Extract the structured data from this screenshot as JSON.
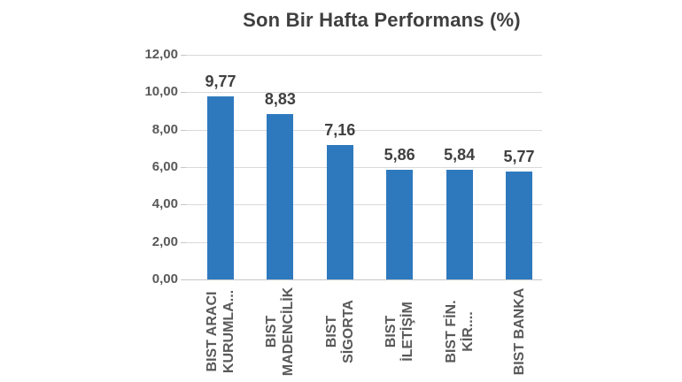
{
  "chart_data": {
    "type": "bar",
    "title": "Son Bir Hafta Performans (%)",
    "categories": [
      "BIST ARACI KURUMLA...",
      "BIST MADENCİLİK",
      "BIST SİGORTA",
      "BIST İLETİŞİM",
      "BIST FİN. KİR....",
      "BIST BANKA"
    ],
    "category_lines": [
      [
        "BIST ARACI",
        "KURUMLA..."
      ],
      [
        "BIST",
        "MADENCİLİK"
      ],
      [
        "BIST",
        "SİGORTA"
      ],
      [
        "BIST",
        "İLETİŞİM"
      ],
      [
        "BIST FİN.",
        "KİR...."
      ],
      [
        "BIST BANKA"
      ]
    ],
    "values": [
      9.77,
      8.83,
      7.16,
      5.86,
      5.84,
      5.77
    ],
    "value_labels": [
      "9,77",
      "8,83",
      "7,16",
      "5,86",
      "5,84",
      "5,77"
    ],
    "xlabel": "",
    "ylabel": "",
    "ylim": [
      0,
      12
    ],
    "yticks": [
      0,
      2,
      4,
      6,
      8,
      10,
      12
    ],
    "ytick_labels": [
      "0,00",
      "2,00",
      "4,00",
      "6,00",
      "8,00",
      "10,00",
      "12,00"
    ],
    "grid": true,
    "legend_position": "none",
    "decimal_separator": ",",
    "colors": {
      "bar": "#2E79BE",
      "title_text": "#3F3F3F",
      "axis_text": "#595959",
      "value_label_text": "#404040",
      "gridline": "#D9D9D9",
      "baseline": "#C6C6C6",
      "background": "#FFFFFF"
    }
  }
}
